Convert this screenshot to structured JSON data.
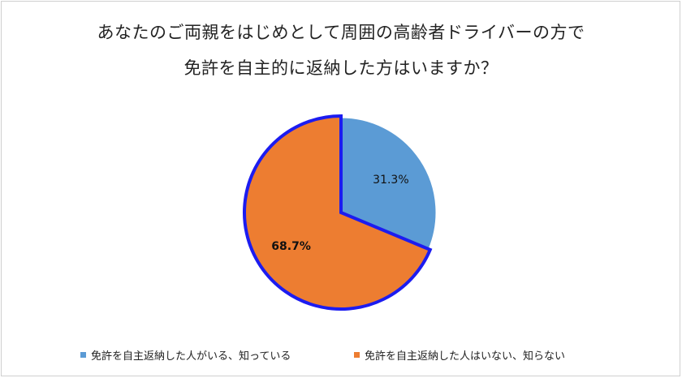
{
  "chart_data": {
    "type": "pie",
    "title": [
      "あなたのご両親をはじめとして周囲の高齢者ドライバーの方で",
      "免許を自主的に返納した方はいますか？"
    ],
    "slices": [
      {
        "name": "免許を自主返納した人がいる、知っている",
        "value": 31.3,
        "label": "31.3%",
        "color": "#5b9bd5",
        "label_bold": false
      },
      {
        "name": "免許を自主返納した人はいない、知らない",
        "value": 68.7,
        "label": "68.7%",
        "color": "#ed7d31",
        "label_bold": true
      }
    ],
    "legend_position": "bottom",
    "highlight_border_color": "#1c1cf0"
  }
}
